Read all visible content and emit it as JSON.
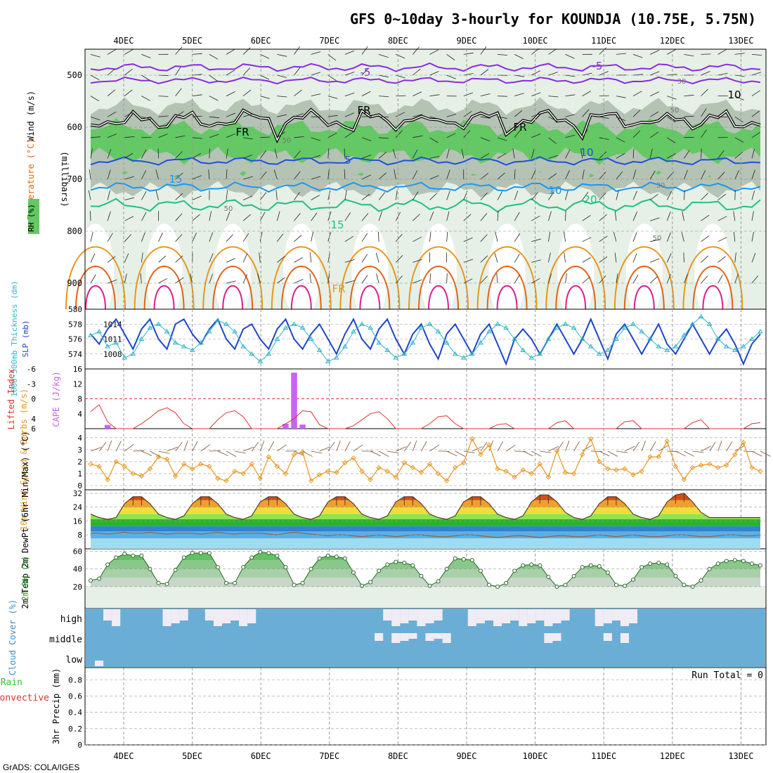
{
  "title": "GFS 0~10day 3-hourly for KOUNDJA (10.75E, 5.75N)",
  "footer": "GrADS: COLA/IGES",
  "colors": {
    "purple": "#8a2be2",
    "blue": "#1e50dc",
    "lightblue": "#1e96f0",
    "green": "#1ec082",
    "orange": "#e8961e",
    "red_orange": "#e06418",
    "magenta": "#dc1e8c",
    "rh_green": "#64c864",
    "rh_gray": "#b4c3b4",
    "rh_pale": "#e6f0e6",
    "slp": "#1e46c8",
    "thick": "#32b4c8",
    "lifted": "#e03232",
    "cape": "#c864f0",
    "wind": "#e8961e",
    "cloud": "#6aaed6",
    "cloud_clear": "#f0ecf4",
    "precip_green": "#32c832",
    "precip_red": "#e03232"
  },
  "chart_data": {
    "type": "meteogram",
    "x_tick_labels": [
      "4DEC",
      "5DEC",
      "6DEC",
      "7DEC",
      "8DEC",
      "9DEC",
      "10DEC",
      "11DEC",
      "12DEC",
      "13DEC"
    ],
    "panels": [
      {
        "name": "upper",
        "ylabel_parts": [
          "RH (%)",
          "Temperature (°C)",
          "Wind (m/s)"
        ],
        "ylabel_right": "(millibars)",
        "y_ticks": [
          500,
          600,
          700,
          800,
          900
        ],
        "ylim": [
          450,
          950
        ],
        "contour_labels": [
          "-5",
          "-5",
          "5",
          "10",
          "10",
          "15",
          "15",
          "20",
          "FR",
          "FR",
          "FR",
          "FR",
          "10",
          "30",
          "50",
          "50",
          "50",
          "50",
          "30"
        ]
      },
      {
        "name": "slp",
        "ylabel_left": "1000-500mb Thickness (dm)",
        "ylabel_right": "SLP (mb)",
        "left_ticks": [
          574,
          576,
          578,
          580
        ],
        "right_ticks": [
          1008,
          1011,
          1014
        ],
        "slp": [
          1012,
          1010,
          1013,
          1015,
          1012,
          1009,
          1013,
          1015,
          1011,
          1009,
          1014,
          1015,
          1012,
          1010,
          1013,
          1015,
          1011,
          1009,
          1013,
          1014,
          1011,
          1009,
          1013,
          1015,
          1011,
          1009,
          1012,
          1014,
          1011,
          1008,
          1012,
          1015,
          1011,
          1009,
          1013,
          1015,
          1011,
          1008,
          1012,
          1014,
          1010,
          1007,
          1012,
          1014,
          1011,
          1008,
          1012,
          1014,
          1010,
          1006,
          1011,
          1013,
          1011,
          1008,
          1011,
          1014,
          1011,
          1008,
          1011,
          1015,
          1011,
          1007,
          1012,
          1014,
          1011,
          1008,
          1011,
          1014,
          1010,
          1008,
          1011,
          1014,
          1011,
          1008,
          1011,
          1013,
          1010,
          1006,
          1010,
          1012
        ],
        "thickness": [
          576.5,
          577,
          575,
          575.5,
          573.5,
          574,
          576,
          577.5,
          578,
          577,
          575.5,
          575,
          574.5,
          575.5,
          577,
          578.5,
          578,
          577,
          575,
          574,
          573,
          574,
          576,
          577.5,
          578,
          577.5,
          576,
          574.5,
          573,
          573.5,
          575,
          577,
          578,
          577.5,
          575.5,
          574.5,
          573.5,
          574,
          575.5,
          577.5,
          578,
          577,
          575.5,
          574,
          573.5,
          574,
          575.5,
          577,
          578,
          577.5,
          576,
          574.5,
          573.5,
          574,
          576,
          577.5,
          578,
          577.5,
          576,
          575,
          574,
          574.5,
          576,
          577.5,
          578,
          577,
          576,
          575,
          574.5,
          575,
          576.5,
          578,
          579,
          578,
          576,
          575,
          574.5,
          575,
          576,
          577
        ]
      },
      {
        "name": "cape",
        "ylabel_left": "Lifted Index",
        "ylabel_right": "CAPE (J/kg)",
        "left_ticks": [
          6,
          4,
          0,
          -3,
          -6
        ],
        "right_ticks": [
          4,
          8,
          12,
          16
        ],
        "lifted_index": [
          2.6,
          1.2,
          4.6,
          6,
          6,
          6,
          5,
          3.8,
          2.4,
          1.8,
          2.8,
          5,
          6,
          6,
          6,
          4.2,
          2.8,
          2.4,
          3.6,
          6,
          6,
          6,
          6,
          5,
          4,
          2.4,
          2.6,
          5.2,
          6,
          6,
          6,
          5.4,
          4.2,
          3,
          2.6,
          4,
          6,
          6,
          6,
          6,
          5,
          3.6,
          3.4,
          5,
          6,
          6,
          6,
          6,
          5.2,
          5,
          6,
          6,
          6,
          6,
          6,
          4.8,
          4.4,
          6,
          6,
          6,
          6,
          6,
          6,
          4.6,
          4.4,
          6,
          6,
          6,
          6,
          6,
          6,
          4.8,
          4.2,
          6,
          6,
          6,
          6,
          6,
          5,
          4.8
        ],
        "cape": [
          0,
          0,
          1,
          0,
          0,
          0,
          0,
          0,
          0,
          0,
          0,
          0,
          0,
          0,
          0,
          0,
          0,
          0,
          0,
          0,
          0,
          0,
          0,
          1.3,
          15,
          1.1,
          0,
          0,
          0,
          0,
          0,
          0,
          0,
          0,
          0,
          0,
          0,
          0,
          0,
          0,
          0,
          0,
          0,
          0,
          0,
          0,
          0,
          0,
          0,
          0,
          0,
          0,
          0,
          0,
          0,
          0,
          0,
          0,
          0,
          0,
          0,
          0,
          0,
          0,
          0,
          0,
          0,
          0,
          0,
          0,
          0,
          0,
          0,
          0,
          0,
          0,
          0,
          0,
          0,
          0
        ]
      },
      {
        "name": "wind10m",
        "ylabel_left": "10m Wind Speed & Barbs (m/s)",
        "y_ticks": [
          0,
          1,
          2,
          3,
          4
        ],
        "speed": [
          1.8,
          1.6,
          0.5,
          2,
          1.6,
          1,
          0.8,
          1.4,
          2.4,
          2.2,
          0.8,
          1.8,
          1.4,
          1.8,
          1.6,
          0.6,
          0.4,
          1.2,
          1,
          1.8,
          0.6,
          2.4,
          1.6,
          1,
          2.6,
          2.8,
          0.4,
          0.9,
          1.2,
          1.1,
          1.9,
          2.3,
          1.2,
          0.5,
          1.5,
          1.2,
          0.7,
          1.9,
          1.5,
          1.1,
          1.8,
          1,
          0.4,
          1.5,
          1.9,
          3.9,
          2.6,
          3.4,
          1.4,
          1.2,
          0.7,
          1.3,
          1,
          1.8,
          0.7,
          2.9,
          1.1,
          1,
          2.6,
          3.9,
          2,
          1.4,
          1.3,
          1.4,
          0.9,
          1.2,
          2.4,
          2.4,
          3.7,
          1.6,
          0.5,
          1.5,
          1.7,
          1.8,
          1.5,
          1.7,
          2.6,
          3.6,
          1.5,
          1.2
        ]
      },
      {
        "name": "temp2m",
        "ylabel_left": "2m Temp 2m DewPt (6hr Min/Max) (°C)",
        "y_ticks": [
          8,
          16,
          24,
          32
        ],
        "temp": [
          20,
          18,
          17,
          18,
          26,
          30,
          30,
          26,
          20,
          18,
          17,
          19,
          26,
          30,
          30,
          26,
          20,
          18,
          17,
          19,
          27,
          30,
          30,
          26,
          20,
          18,
          17,
          19,
          27,
          30,
          30,
          26,
          20,
          18,
          17,
          19,
          27,
          30,
          30,
          26,
          20,
          18,
          17,
          19,
          27,
          30,
          30,
          26,
          20,
          18,
          17,
          19,
          27,
          31,
          31,
          27,
          21,
          18,
          17,
          19,
          26,
          30,
          30,
          26,
          20,
          18,
          17,
          19,
          27,
          31,
          32,
          27,
          21,
          18,
          18,
          18,
          18,
          18,
          18,
          18
        ],
        "dewpoint": [
          9,
          9,
          8.5,
          9,
          9.5,
          9,
          9,
          9.5,
          9,
          8.5,
          9,
          9,
          9,
          8.5,
          9,
          9.5,
          9,
          8.5,
          9,
          9,
          9,
          8.5,
          8,
          9,
          9.5,
          9,
          8.5,
          8,
          7.5,
          8,
          8,
          7.5,
          7,
          7.5,
          8,
          7.5,
          7,
          7.5,
          8,
          8,
          7.5,
          7,
          7,
          7.5,
          8,
          8,
          7.5,
          7,
          6.5,
          7,
          7.5,
          7.5,
          7,
          6.5,
          7,
          7.5,
          7.5,
          7,
          7,
          7.5,
          8,
          7.5,
          7,
          7.5,
          8,
          7.5,
          7,
          7,
          7.5,
          8,
          8,
          7.5,
          7,
          7,
          7.5,
          8,
          8,
          7.5,
          7.5,
          8
        ]
      },
      {
        "name": "rh2m",
        "ylabel_left": "2m RH (%)",
        "y_ticks": [
          20,
          40,
          60
        ],
        "rh": [
          27,
          29,
          45,
          53,
          57,
          55,
          55,
          40,
          24,
          23,
          39,
          53,
          58,
          58,
          58,
          42,
          24,
          24,
          42,
          53,
          59,
          58,
          55,
          42,
          22,
          24,
          40,
          52,
          55,
          54,
          52,
          36,
          21,
          25,
          38,
          45,
          48,
          47,
          44,
          32,
          21,
          26,
          40,
          52,
          51,
          50,
          38,
          22,
          20,
          24,
          38,
          44,
          45,
          44,
          31,
          20,
          22,
          32,
          42,
          44,
          43,
          36,
          22,
          21,
          28,
          42,
          46,
          47,
          45,
          32,
          22,
          20,
          27,
          40,
          46,
          49,
          50,
          49,
          46,
          44
        ]
      },
      {
        "name": "cloud",
        "ylabel_left": "Cloud Cover (%)",
        "row_labels": [
          "high",
          "middle",
          "low"
        ]
      },
      {
        "name": "precip",
        "ylabel_left": "Total / Rain Convective",
        "ylabel_right": "3hr Precip (mm)",
        "y_ticks": [
          0,
          0.2,
          0.4,
          0.6,
          0.8
        ],
        "run_total": "Run Total = 0"
      }
    ]
  }
}
